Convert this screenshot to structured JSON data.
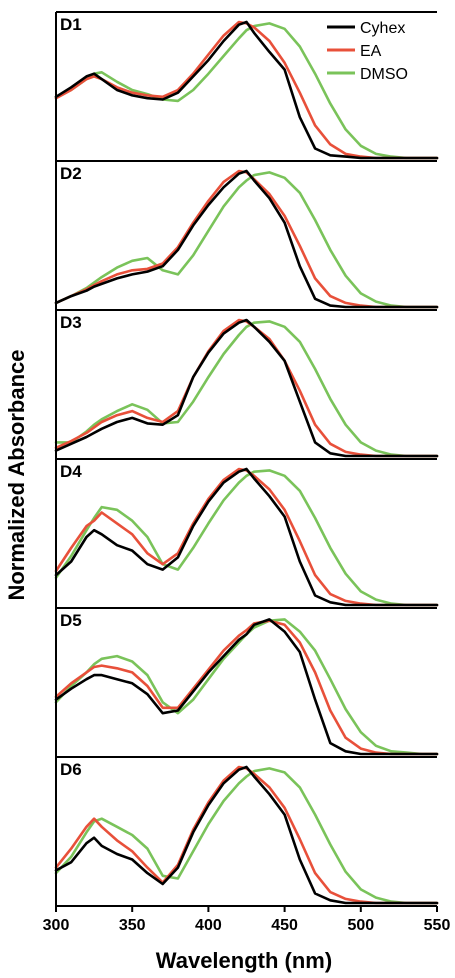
{
  "figure": {
    "ylabel": "Normalized Absorbance",
    "xlabel": "Wavelength (nm)"
  },
  "legend": [
    {
      "name": "Cyhex",
      "color": "#000000"
    },
    {
      "name": "EA",
      "color": "#e8503a"
    },
    {
      "name": "DMSO",
      "color": "#7ac35a"
    }
  ],
  "chart_data": {
    "type": "line",
    "stacked_panels": true,
    "xlabel": "Wavelength (nm)",
    "ylabel": "Normalized Absorbance",
    "xlim": [
      300,
      550
    ],
    "xticks": [
      300,
      350,
      400,
      450,
      500,
      550
    ],
    "ylim": [
      0,
      1
    ],
    "yticks_shown": false,
    "legend_position": "top-right",
    "x": [
      300,
      310,
      320,
      325,
      330,
      340,
      350,
      360,
      370,
      380,
      390,
      400,
      410,
      420,
      425,
      430,
      440,
      450,
      460,
      470,
      480,
      490,
      500,
      510,
      520,
      530,
      540,
      550
    ],
    "panels": [
      {
        "label": "D1",
        "series": [
          {
            "name": "Cyhex",
            "color": "#000000",
            "values": [
              0.45,
              0.52,
              0.6,
              0.62,
              0.58,
              0.5,
              0.46,
              0.44,
              0.43,
              0.48,
              0.6,
              0.72,
              0.86,
              0.98,
              1.0,
              0.92,
              0.78,
              0.65,
              0.3,
              0.07,
              0.02,
              0.01,
              0.0,
              0.0,
              0.0,
              0.0,
              0.0,
              0.0
            ]
          },
          {
            "name": "EA",
            "color": "#e8503a",
            "values": [
              0.44,
              0.5,
              0.58,
              0.6,
              0.58,
              0.52,
              0.48,
              0.46,
              0.45,
              0.5,
              0.62,
              0.76,
              0.9,
              1.0,
              0.99,
              0.96,
              0.86,
              0.7,
              0.48,
              0.24,
              0.1,
              0.03,
              0.01,
              0.0,
              0.0,
              0.0,
              0.0,
              0.0
            ]
          },
          {
            "name": "DMSO",
            "color": "#7ac35a",
            "values": [
              0.45,
              0.5,
              0.58,
              0.62,
              0.63,
              0.56,
              0.5,
              0.47,
              0.43,
              0.42,
              0.5,
              0.62,
              0.75,
              0.88,
              0.94,
              0.97,
              0.99,
              0.95,
              0.82,
              0.62,
              0.4,
              0.21,
              0.09,
              0.03,
              0.01,
              0.0,
              0.0,
              0.0
            ]
          }
        ]
      },
      {
        "label": "D2",
        "series": [
          {
            "name": "Cyhex",
            "color": "#000000",
            "values": [
              0.03,
              0.08,
              0.12,
              0.15,
              0.17,
              0.21,
              0.24,
              0.26,
              0.3,
              0.42,
              0.6,
              0.75,
              0.88,
              0.98,
              1.0,
              0.93,
              0.8,
              0.62,
              0.3,
              0.06,
              0.01,
              0.0,
              0.0,
              0.0,
              0.0,
              0.0,
              0.0,
              0.0
            ]
          },
          {
            "name": "EA",
            "color": "#e8503a",
            "values": [
              0.03,
              0.08,
              0.13,
              0.16,
              0.19,
              0.24,
              0.27,
              0.28,
              0.32,
              0.44,
              0.62,
              0.78,
              0.92,
              1.0,
              0.99,
              0.94,
              0.83,
              0.67,
              0.45,
              0.21,
              0.08,
              0.03,
              0.01,
              0.0,
              0.0,
              0.0,
              0.0,
              0.0
            ]
          },
          {
            "name": "DMSO",
            "color": "#7ac35a",
            "values": [
              0.03,
              0.08,
              0.14,
              0.18,
              0.22,
              0.29,
              0.34,
              0.36,
              0.27,
              0.24,
              0.38,
              0.56,
              0.74,
              0.88,
              0.93,
              0.97,
              0.99,
              0.95,
              0.84,
              0.64,
              0.42,
              0.23,
              0.1,
              0.04,
              0.01,
              0.0,
              0.0,
              0.0
            ]
          }
        ]
      },
      {
        "label": "D3",
        "series": [
          {
            "name": "Cyhex",
            "color": "#000000",
            "values": [
              0.04,
              0.09,
              0.14,
              0.17,
              0.2,
              0.25,
              0.28,
              0.24,
              0.23,
              0.3,
              0.58,
              0.76,
              0.9,
              0.98,
              1.0,
              0.95,
              0.84,
              0.7,
              0.4,
              0.1,
              0.02,
              0.0,
              0.0,
              0.0,
              0.0,
              0.0,
              0.0,
              0.0
            ]
          },
          {
            "name": "EA",
            "color": "#e8503a",
            "values": [
              0.06,
              0.11,
              0.17,
              0.21,
              0.25,
              0.3,
              0.33,
              0.28,
              0.25,
              0.33,
              0.58,
              0.77,
              0.92,
              1.0,
              0.99,
              0.95,
              0.86,
              0.7,
              0.48,
              0.23,
              0.09,
              0.03,
              0.01,
              0.0,
              0.0,
              0.0,
              0.0,
              0.0
            ]
          },
          {
            "name": "DMSO",
            "color": "#7ac35a",
            "values": [
              0.1,
              0.1,
              0.18,
              0.23,
              0.27,
              0.33,
              0.38,
              0.34,
              0.24,
              0.25,
              0.4,
              0.58,
              0.75,
              0.89,
              0.95,
              0.98,
              0.99,
              0.95,
              0.84,
              0.64,
              0.42,
              0.23,
              0.1,
              0.04,
              0.01,
              0.0,
              0.0,
              0.0
            ]
          }
        ]
      },
      {
        "label": "D4",
        "series": [
          {
            "name": "Cyhex",
            "color": "#000000",
            "values": [
              0.22,
              0.32,
              0.5,
              0.55,
              0.52,
              0.44,
              0.4,
              0.3,
              0.26,
              0.35,
              0.58,
              0.76,
              0.9,
              0.98,
              1.0,
              0.93,
              0.8,
              0.65,
              0.32,
              0.07,
              0.02,
              0.0,
              0.0,
              0.0,
              0.0,
              0.0,
              0.0,
              0.0
            ]
          },
          {
            "name": "EA",
            "color": "#e8503a",
            "values": [
              0.25,
              0.42,
              0.58,
              0.62,
              0.68,
              0.6,
              0.52,
              0.38,
              0.3,
              0.38,
              0.6,
              0.78,
              0.92,
              1.0,
              0.99,
              0.95,
              0.85,
              0.7,
              0.47,
              0.22,
              0.08,
              0.03,
              0.01,
              0.0,
              0.0,
              0.0,
              0.0,
              0.0
            ]
          },
          {
            "name": "DMSO",
            "color": "#7ac35a",
            "values": [
              0.2,
              0.36,
              0.55,
              0.64,
              0.72,
              0.7,
              0.62,
              0.5,
              0.3,
              0.26,
              0.42,
              0.6,
              0.77,
              0.9,
              0.95,
              0.98,
              0.99,
              0.95,
              0.84,
              0.64,
              0.42,
              0.23,
              0.1,
              0.04,
              0.01,
              0.0,
              0.0,
              0.0
            ]
          }
        ]
      },
      {
        "label": "D5",
        "series": [
          {
            "name": "Cyhex",
            "color": "#000000",
            "values": [
              0.4,
              0.48,
              0.55,
              0.58,
              0.58,
              0.55,
              0.52,
              0.44,
              0.3,
              0.32,
              0.46,
              0.6,
              0.72,
              0.84,
              0.88,
              0.95,
              0.99,
              0.9,
              0.75,
              0.4,
              0.08,
              0.02,
              0.0,
              0.0,
              0.0,
              0.0,
              0.0,
              0.0
            ]
          },
          {
            "name": "EA",
            "color": "#e8503a",
            "values": [
              0.42,
              0.52,
              0.6,
              0.64,
              0.65,
              0.63,
              0.6,
              0.5,
              0.34,
              0.34,
              0.48,
              0.62,
              0.76,
              0.87,
              0.91,
              0.96,
              0.98,
              0.95,
              0.82,
              0.6,
              0.32,
              0.12,
              0.04,
              0.01,
              0.0,
              0.0,
              0.0,
              0.0
            ]
          },
          {
            "name": "DMSO",
            "color": "#7ac35a",
            "values": [
              0.38,
              0.5,
              0.6,
              0.66,
              0.7,
              0.72,
              0.68,
              0.58,
              0.38,
              0.3,
              0.4,
              0.55,
              0.7,
              0.82,
              0.88,
              0.93,
              0.98,
              0.99,
              0.9,
              0.76,
              0.55,
              0.33,
              0.16,
              0.06,
              0.02,
              0.01,
              0.0,
              0.0
            ]
          }
        ]
      },
      {
        "label": "D6",
        "series": [
          {
            "name": "Cyhex",
            "color": "#000000",
            "values": [
              0.24,
              0.3,
              0.44,
              0.48,
              0.42,
              0.36,
              0.32,
              0.22,
              0.14,
              0.26,
              0.52,
              0.72,
              0.88,
              0.98,
              1.0,
              0.93,
              0.8,
              0.65,
              0.32,
              0.07,
              0.02,
              0.0,
              0.0,
              0.0,
              0.0,
              0.0,
              0.0,
              0.0
            ]
          },
          {
            "name": "EA",
            "color": "#e8503a",
            "values": [
              0.26,
              0.4,
              0.56,
              0.62,
              0.56,
              0.46,
              0.38,
              0.26,
              0.15,
              0.28,
              0.54,
              0.74,
              0.9,
              1.0,
              0.99,
              0.95,
              0.85,
              0.7,
              0.47,
              0.22,
              0.08,
              0.03,
              0.01,
              0.0,
              0.0,
              0.0,
              0.0,
              0.0
            ]
          },
          {
            "name": "DMSO",
            "color": "#7ac35a",
            "values": [
              0.22,
              0.34,
              0.52,
              0.6,
              0.62,
              0.56,
              0.5,
              0.4,
              0.2,
              0.18,
              0.38,
              0.58,
              0.75,
              0.88,
              0.93,
              0.97,
              0.99,
              0.96,
              0.85,
              0.65,
              0.43,
              0.23,
              0.1,
              0.04,
              0.01,
              0.0,
              0.0,
              0.0
            ]
          }
        ]
      }
    ]
  }
}
